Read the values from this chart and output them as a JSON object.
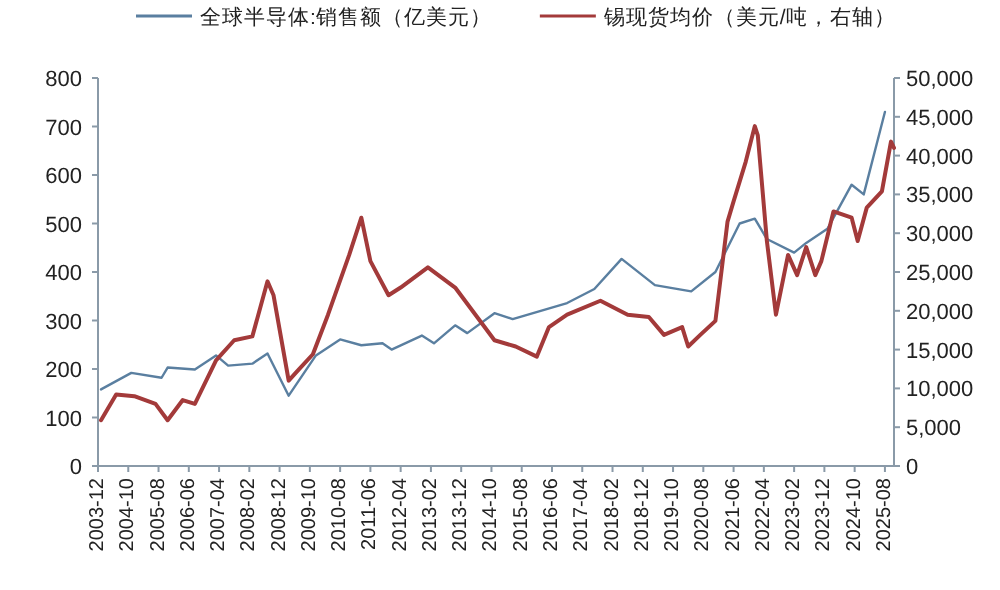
{
  "chart_data": {
    "type": "line",
    "legend": "top",
    "xlim": [
      "2003-12",
      "2025-11"
    ],
    "xticks": [
      "2003-12",
      "2004-10",
      "2005-08",
      "2006-06",
      "2007-04",
      "2008-02",
      "2008-12",
      "2009-10",
      "2010-08",
      "2011-06",
      "2012-04",
      "2013-02",
      "2013-12",
      "2014-10",
      "2015-08",
      "2016-06",
      "2017-04",
      "2018-02",
      "2018-12",
      "2019-10",
      "2020-08",
      "2021-06",
      "2022-04",
      "2023-02",
      "2023-12",
      "2024-10",
      "2025-08"
    ],
    "ylim": [
      0,
      800
    ],
    "yticks": [
      0,
      100,
      200,
      300,
      400,
      500,
      600,
      700,
      800
    ],
    "y2lim": [
      0,
      50000
    ],
    "y2ticks": [
      0,
      {
        "value": 5000,
        "label": "5,000"
      },
      {
        "value": 10000,
        "label": "10,000"
      },
      {
        "value": 15000,
        "label": "15,000"
      },
      {
        "value": 20000,
        "label": "20,000"
      },
      {
        "value": 25000,
        "label": "25,000"
      },
      {
        "value": 30000,
        "label": "30,000"
      },
      {
        "value": 35000,
        "label": "35,000"
      },
      {
        "value": 40000,
        "label": "40,000"
      },
      {
        "value": 45000,
        "label": "45,000"
      },
      {
        "value": 50000,
        "label": "50,000"
      }
    ],
    "series": [
      {
        "name": "全球半导体:销售额（亿美元）",
        "color": "#5a7fa0",
        "x": [
          "2004-01",
          "2004-11",
          "2005-09",
          "2005-11",
          "2006-08",
          "2007-03",
          "2007-07",
          "2008-03",
          "2008-08",
          "2009-03",
          "2009-12",
          "2010-08",
          "2011-03",
          "2011-10",
          "2012-01",
          "2012-11",
          "2013-03",
          "2013-10",
          "2014-02",
          "2014-11",
          "2015-05",
          "2016-11",
          "2017-08",
          "2018-05",
          "2019-04",
          "2020-04",
          "2020-12",
          "2021-08",
          "2022-01",
          "2022-05",
          "2023-02",
          "2023-06",
          "2024-01",
          "2024-09",
          "2025-01",
          "2025-08"
        ],
        "values": [
          158,
          192,
          182,
          203,
          199,
          228,
          207,
          211,
          232,
          145,
          228,
          261,
          249,
          253,
          240,
          269,
          253,
          290,
          274,
          315,
          303,
          336,
          365,
          427,
          373,
          360,
          400,
          500,
          510,
          468,
          440,
          460,
          489,
          580,
          560,
          730
        ]
      },
      {
        "name": "锡现货均价（美元/吨，右轴）",
        "color": "#a33a3a",
        "axis": "y2",
        "x": [
          "2004-01",
          "2004-06",
          "2004-12",
          "2005-07",
          "2005-11",
          "2006-04",
          "2006-08",
          "2007-03",
          "2007-09",
          "2008-03",
          "2008-08",
          "2008-10",
          "2009-03",
          "2009-06",
          "2009-11",
          "2010-04",
          "2010-11",
          "2011-03",
          "2011-06",
          "2011-12",
          "2012-04",
          "2013-01",
          "2013-10",
          "2014-11",
          "2015-06",
          "2016-01",
          "2016-05",
          "2016-11",
          "2017-10",
          "2018-07",
          "2019-02",
          "2019-07",
          "2020-01",
          "2020-03",
          "2020-07",
          "2020-12",
          "2021-04",
          "2021-06",
          "2021-10",
          "2022-01",
          "2022-02",
          "2022-05",
          "2022-08",
          "2022-12",
          "2023-03",
          "2023-06",
          "2023-09",
          "2023-11",
          "2024-03",
          "2024-09",
          "2024-11",
          "2025-02",
          "2025-07",
          "2025-10",
          "2025-11"
        ],
        "values": [
          5900,
          9200,
          9000,
          8000,
          5900,
          8500,
          8000,
          13600,
          16200,
          16700,
          23800,
          22000,
          11000,
          12300,
          14400,
          19500,
          27200,
          32000,
          26400,
          22000,
          23000,
          25600,
          23000,
          16200,
          15400,
          14100,
          17900,
          19500,
          21300,
          19500,
          19200,
          16900,
          17900,
          15400,
          16900,
          18700,
          31500,
          34100,
          39200,
          43800,
          42600,
          29000,
          19500,
          27200,
          24600,
          28200,
          24600,
          26400,
          32800,
          32000,
          29000,
          33300,
          35400,
          41800,
          41000
        ]
      }
    ]
  }
}
